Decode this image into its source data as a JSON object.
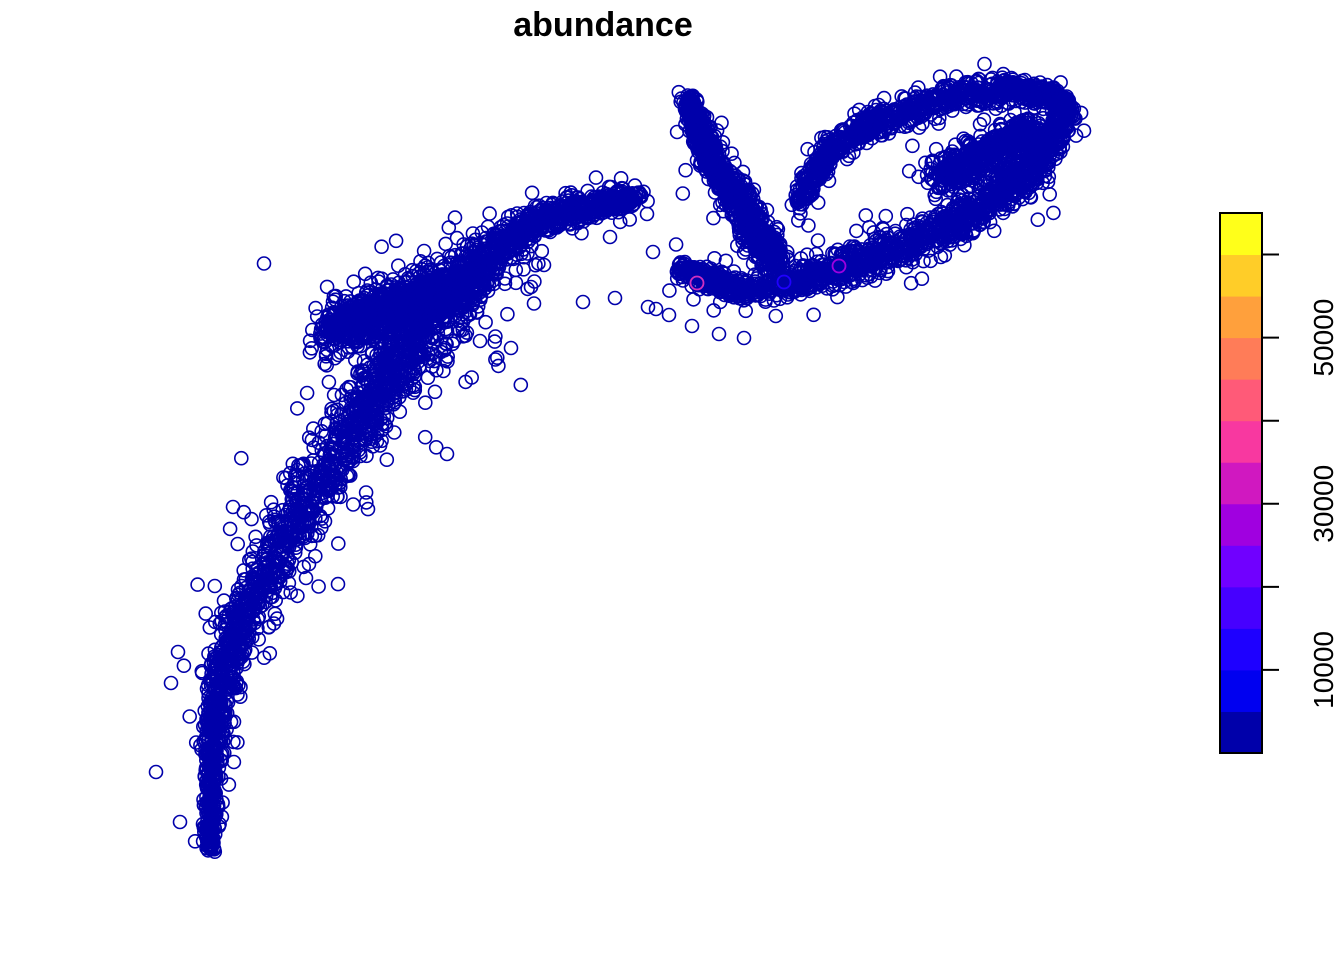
{
  "chart_data": {
    "type": "scatter",
    "title": "abundance",
    "xlabel": "",
    "ylabel": "",
    "grid": false,
    "marker": "open-circle",
    "legend": {
      "type": "color-bar",
      "placement": "right",
      "range": [
        0,
        65000
      ],
      "breaks": [
        0,
        5000,
        10000,
        15000,
        20000,
        25000,
        30000,
        35000,
        40000,
        45000,
        50000,
        55000,
        60000,
        65000
      ],
      "colors": [
        "#0000AA",
        "#0000F0",
        "#1E00FF",
        "#4600FF",
        "#7000FF",
        "#A000E0",
        "#D018C0",
        "#F838A0",
        "#FF5A78",
        "#FF7C58",
        "#FFA03C",
        "#FFCD28",
        "#FFFF1A"
      ],
      "tick_values": [
        10000,
        30000,
        50000
      ],
      "tick_labels": [
        "10000",
        "30000",
        "50000"
      ]
    },
    "point_color_default": "#0000AA",
    "notable_points": [
      {
        "abundance": 35000,
        "color": "#D030C0"
      },
      {
        "abundance": 25000,
        "color": "#A000E0"
      },
      {
        "abundance": 12000,
        "color": "#2000FF"
      }
    ]
  }
}
